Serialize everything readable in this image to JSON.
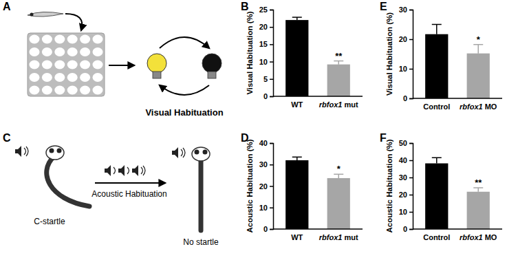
{
  "figure": {
    "panel_labels": [
      "A",
      "B",
      "C",
      "D",
      "E",
      "F"
    ],
    "schematic_a": {
      "caption": "Visual Habituation"
    },
    "schematic_c": {
      "left_caption": "C-startle",
      "arrow_caption": "Acoustic Habituation",
      "right_caption": "No startle"
    }
  },
  "chart_data": [
    {
      "type": "bar",
      "y_label": "Visual Habituation (%)",
      "categories": [
        "WT",
        "rbfox1 mut"
      ],
      "values": [
        22.0,
        9.2
      ],
      "errors": [
        0.8,
        1.0
      ],
      "colors": [
        "#000000",
        "#a6a6a6"
      ],
      "ylim": [
        0,
        25
      ],
      "yticks": [
        0,
        5,
        10,
        15,
        20,
        25
      ],
      "annotations": [
        "**"
      ]
    },
    {
      "type": "bar",
      "y_label": "Acoustic Habituation (%)",
      "categories": [
        "WT",
        "rbfox1 mut"
      ],
      "values": [
        32.0,
        23.7
      ],
      "errors": [
        1.5,
        1.8
      ],
      "colors": [
        "#000000",
        "#a6a6a6"
      ],
      "ylim": [
        0,
        40
      ],
      "yticks": [
        0,
        10,
        20,
        30,
        40
      ],
      "annotations": [
        "*"
      ]
    },
    {
      "type": "bar",
      "y_label": "Visual Habituation (%)",
      "categories": [
        "Control",
        "rbfox1 MO"
      ],
      "values": [
        21.7,
        15.2
      ],
      "errors": [
        3.3,
        3.0
      ],
      "colors": [
        "#000000",
        "#a6a6a6"
      ],
      "ylim": [
        0,
        30
      ],
      "yticks": [
        0,
        10,
        20,
        30
      ],
      "annotations": [
        "*"
      ]
    },
    {
      "type": "bar",
      "y_label": "Acoustic Habituation (%)",
      "categories": [
        "Control",
        "rbfox1 MO"
      ],
      "values": [
        38.2,
        21.7
      ],
      "errors": [
        3.3,
        2.3
      ],
      "colors": [
        "#000000",
        "#a6a6a6"
      ],
      "ylim": [
        0,
        50
      ],
      "yticks": [
        0,
        10,
        20,
        30,
        40,
        50
      ],
      "annotations": [
        "**"
      ]
    }
  ]
}
